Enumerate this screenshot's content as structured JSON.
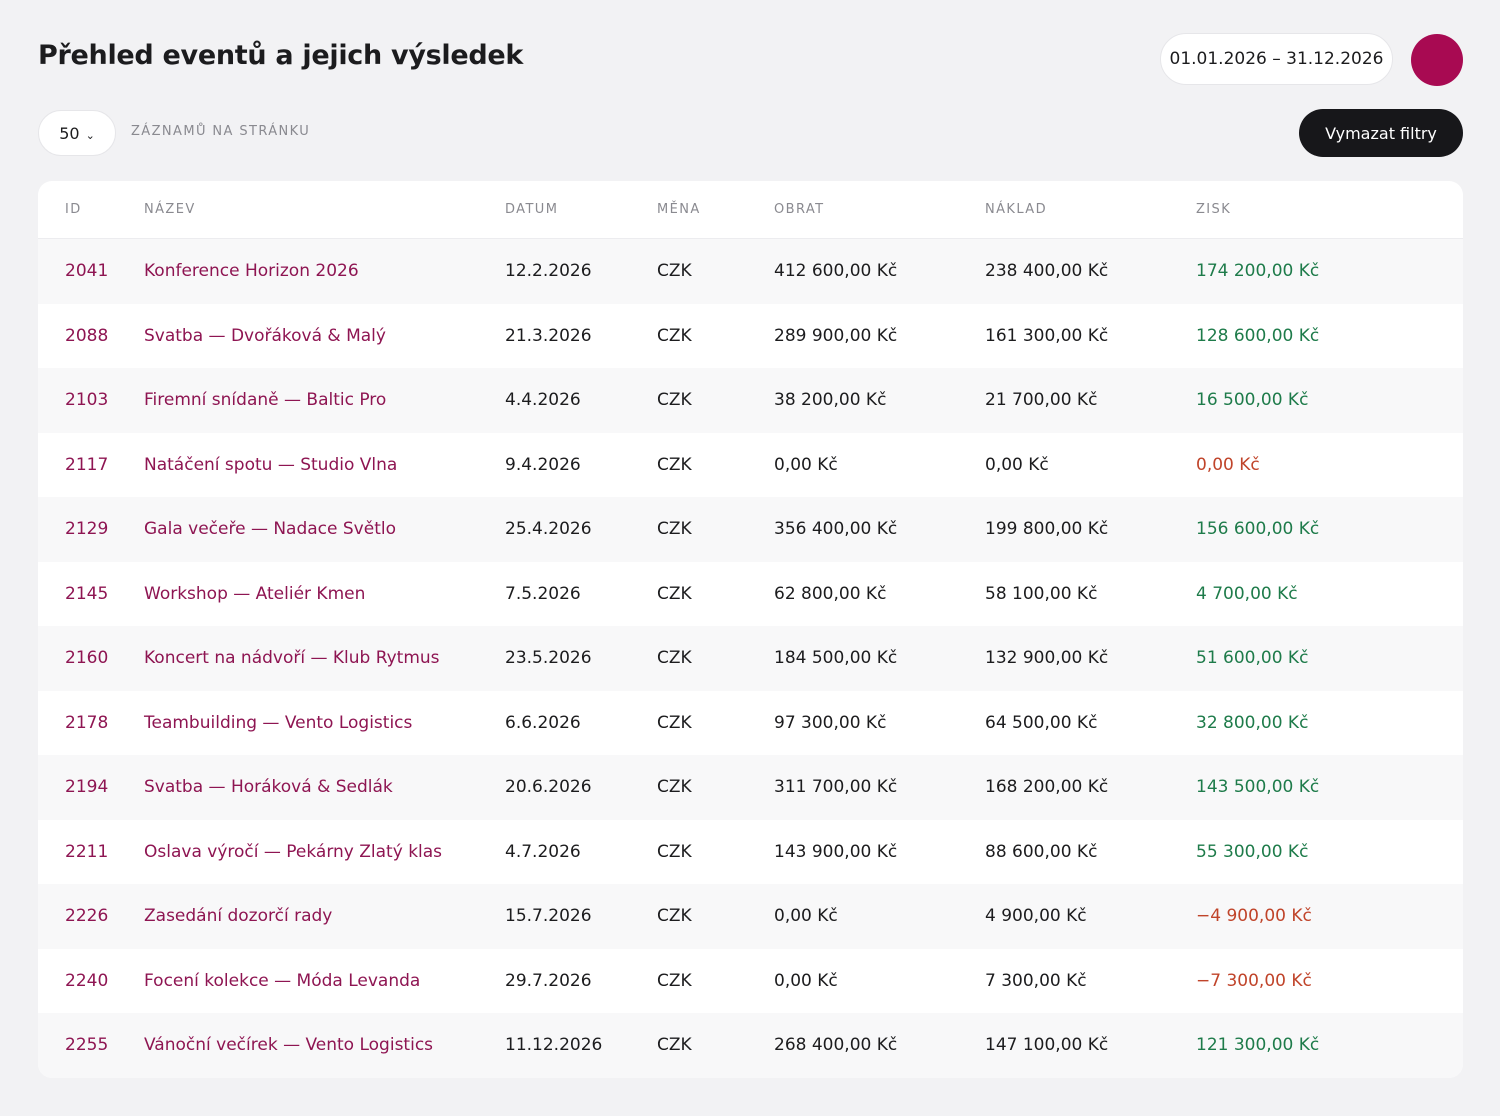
{
  "header": {
    "title": "Přehled eventů a jejich výsledek",
    "date_range": "01.01.2026 – 31.12.2026"
  },
  "toolbar": {
    "page_size": "50",
    "page_size_label": "ZÁZNAMŮ NA STRÁNKU",
    "clear_filters": "Vymazat filtry"
  },
  "colors": {
    "accent": "#a80a52",
    "link": "#8e1552",
    "positive": "#1e7b4a",
    "negative": "#c0442a"
  },
  "table": {
    "columns": [
      "ID",
      "NÁZEV",
      "DATUM",
      "MĚNA",
      "OBRAT",
      "NÁKLAD",
      "ZISK"
    ],
    "rows": [
      {
        "id": "2041",
        "name": "Konference Horizon 2026",
        "date": "12.2.2026",
        "currency": "CZK",
        "revenue": "412 600,00 Kč",
        "cost": "238 400,00 Kč",
        "profit": "174 200,00 Kč",
        "status": "pos"
      },
      {
        "id": "2088",
        "name": "Svatba — Dvořáková & Malý",
        "date": "21.3.2026",
        "currency": "CZK",
        "revenue": "289 900,00 Kč",
        "cost": "161 300,00 Kč",
        "profit": "128 600,00 Kč",
        "status": "pos"
      },
      {
        "id": "2103",
        "name": "Firemní snídaně — Baltic Pro",
        "date": "4.4.2026",
        "currency": "CZK",
        "revenue": "38 200,00 Kč",
        "cost": "21 700,00 Kč",
        "profit": "16 500,00 Kč",
        "status": "pos"
      },
      {
        "id": "2117",
        "name": "Natáčení spotu — Studio Vlna",
        "date": "9.4.2026",
        "currency": "CZK",
        "revenue": "0,00 Kč",
        "cost": "0,00 Kč",
        "profit": "0,00 Kč",
        "status": "neg"
      },
      {
        "id": "2129",
        "name": "Gala večeře — Nadace Světlo",
        "date": "25.4.2026",
        "currency": "CZK",
        "revenue": "356 400,00 Kč",
        "cost": "199 800,00 Kč",
        "profit": "156 600,00 Kč",
        "status": "pos"
      },
      {
        "id": "2145",
        "name": "Workshop — Ateliér Kmen",
        "date": "7.5.2026",
        "currency": "CZK",
        "revenue": "62 800,00 Kč",
        "cost": "58 100,00 Kč",
        "profit": "4 700,00 Kč",
        "status": "pos"
      },
      {
        "id": "2160",
        "name": "Koncert na nádvoří — Klub Rytmus",
        "date": "23.5.2026",
        "currency": "CZK",
        "revenue": "184 500,00 Kč",
        "cost": "132 900,00 Kč",
        "profit": "51 600,00 Kč",
        "status": "pos"
      },
      {
        "id": "2178",
        "name": "Teambuilding — Vento Logistics",
        "date": "6.6.2026",
        "currency": "CZK",
        "revenue": "97 300,00 Kč",
        "cost": "64 500,00 Kč",
        "profit": "32 800,00 Kč",
        "status": "pos"
      },
      {
        "id": "2194",
        "name": "Svatba — Horáková & Sedlák",
        "date": "20.6.2026",
        "currency": "CZK",
        "revenue": "311 700,00 Kč",
        "cost": "168 200,00 Kč",
        "profit": "143 500,00 Kč",
        "status": "pos"
      },
      {
        "id": "2211",
        "name": "Oslava výročí — Pekárny Zlatý klas",
        "date": "4.7.2026",
        "currency": "CZK",
        "revenue": "143 900,00 Kč",
        "cost": "88 600,00 Kč",
        "profit": "55 300,00 Kč",
        "status": "pos"
      },
      {
        "id": "2226",
        "name": "Zasedání dozorčí rady",
        "date": "15.7.2026",
        "currency": "CZK",
        "revenue": "0,00 Kč",
        "cost": "4 900,00 Kč",
        "profit": "−4 900,00 Kč",
        "status": "neg"
      },
      {
        "id": "2240",
        "name": "Focení kolekce — Móda Levanda",
        "date": "29.7.2026",
        "currency": "CZK",
        "revenue": "0,00 Kč",
        "cost": "7 300,00 Kč",
        "profit": "−7 300,00 Kč",
        "status": "neg"
      },
      {
        "id": "2255",
        "name": "Vánoční večírek — Vento Logistics",
        "date": "11.12.2026",
        "currency": "CZK",
        "revenue": "268 400,00 Kč",
        "cost": "147 100,00 Kč",
        "profit": "121 300,00 Kč",
        "status": "pos"
      }
    ]
  }
}
